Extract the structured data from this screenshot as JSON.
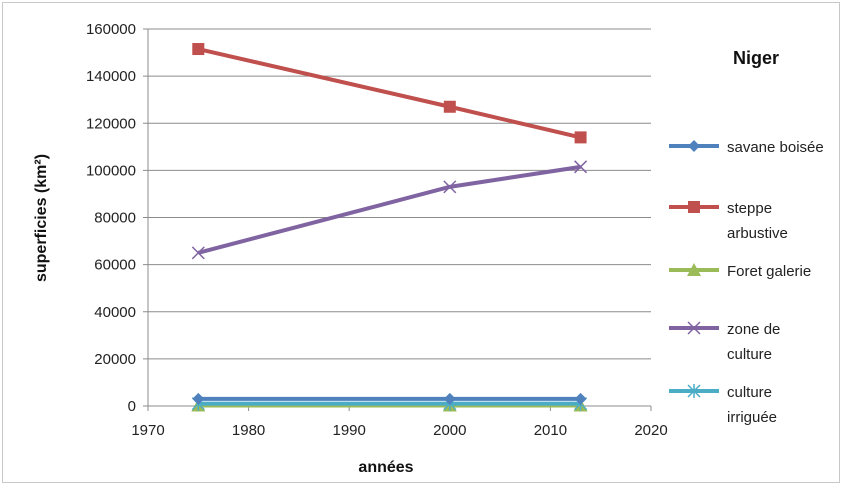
{
  "chart_data": {
    "type": "line",
    "title": "Niger",
    "xlabel": "années",
    "ylabel": "superficies  (km²)",
    "xlim": [
      1970,
      2020
    ],
    "ylim": [
      0,
      160000
    ],
    "x_ticks": [
      1970,
      1980,
      1990,
      2000,
      2010,
      2020
    ],
    "y_ticks": [
      0,
      20000,
      40000,
      60000,
      80000,
      100000,
      120000,
      140000,
      160000
    ],
    "grid": "horizontal",
    "legend_position": "right",
    "x": [
      1975,
      2000,
      2013
    ],
    "series": [
      {
        "name": "savane boisée",
        "legend_lines": [
          "savane boisée"
        ],
        "values": [
          3000,
          3000,
          3000
        ],
        "color": "#4f81bd",
        "marker": "diamond"
      },
      {
        "name": "steppe arbustive",
        "legend_lines": [
          "steppe",
          "arbustive"
        ],
        "values": [
          151500,
          127000,
          114000
        ],
        "color": "#c0504d",
        "marker": "square"
      },
      {
        "name": "Foret galerie",
        "legend_lines": [
          "Foret galerie"
        ],
        "values": [
          200,
          200,
          200
        ],
        "color": "#9bbb59",
        "marker": "triangle"
      },
      {
        "name": "zone de culture",
        "legend_lines": [
          "zone de",
          "culture"
        ],
        "values": [
          65000,
          93000,
          101500
        ],
        "color": "#8064a2",
        "marker": "x"
      },
      {
        "name": "culture irriguée",
        "legend_lines": [
          "culture",
          "irriguée"
        ],
        "values": [
          1000,
          1000,
          1000
        ],
        "color": "#4bacc6",
        "marker": "star"
      }
    ]
  }
}
